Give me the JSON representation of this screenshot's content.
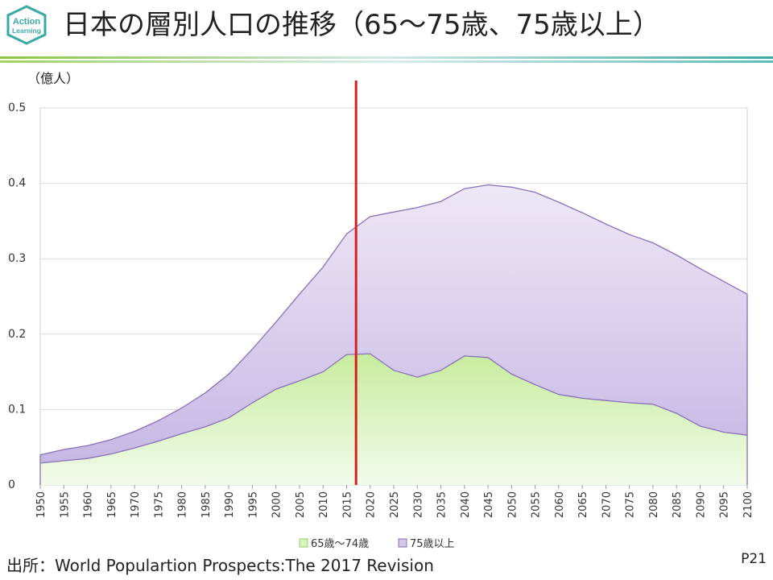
{
  "slide": {
    "title": "日本の層別人口の推移（65～75歳、75歳以上）",
    "logo_line1": "Action",
    "logo_line2": "Learning",
    "unit": "（億人）",
    "source": "出所：World  Populartion  Prospects:The  2017 Revision",
    "page": "P21"
  },
  "colors": {
    "brand_green": "#8cc63f",
    "brand_teal": "#3aa9a6",
    "series_65_74_top": "#eaf7dd",
    "series_65_74_bottom": "#c7ec9e",
    "series_65_74_line": "#9acd6a",
    "series_75_plus_top": "#ece6f6",
    "series_75_plus_bottom": "#cbbde6",
    "series_75_plus_line": "#8a6fb8",
    "marker_line": "#d42020"
  },
  "chart_data": {
    "type": "area",
    "stacked": true,
    "title": "日本の層別人口の推移（65～75歳、75歳以上）",
    "ylabel": "（億人）",
    "ylim": [
      0,
      0.5
    ],
    "yticks": [
      "0",
      "0.1",
      "0.2",
      "0.3",
      "0.4",
      "0.5"
    ],
    "grid": true,
    "legend_position": "bottom",
    "x": [
      "1950",
      "1955",
      "1960",
      "1965",
      "1970",
      "1975",
      "1980",
      "1985",
      "1990",
      "1995",
      "2000",
      "2005",
      "2010",
      "2015",
      "2020",
      "2025",
      "2030",
      "2035",
      "2040",
      "2045",
      "2050",
      "2055",
      "2060",
      "2065",
      "2070",
      "2075",
      "2080",
      "2085",
      "2090",
      "2095",
      "2100"
    ],
    "series": [
      {
        "name": "65歳～74歳",
        "values": [
          0.029,
          0.032,
          0.035,
          0.041,
          0.049,
          0.058,
          0.068,
          0.077,
          0.089,
          0.109,
          0.127,
          0.138,
          0.15,
          0.173,
          0.174,
          0.152,
          0.143,
          0.152,
          0.171,
          0.169,
          0.147,
          0.133,
          0.12,
          0.115,
          0.112,
          0.109,
          0.107,
          0.095,
          0.078,
          0.07,
          0.066
        ]
      },
      {
        "name": "75歳以上",
        "values": [
          0.011,
          0.015,
          0.017,
          0.019,
          0.022,
          0.027,
          0.034,
          0.045,
          0.058,
          0.071,
          0.089,
          0.115,
          0.139,
          0.16,
          0.182,
          0.21,
          0.225,
          0.224,
          0.222,
          0.229,
          0.248,
          0.255,
          0.255,
          0.246,
          0.234,
          0.223,
          0.214,
          0.21,
          0.209,
          0.2,
          0.187
        ]
      }
    ],
    "reference_line_x": "2017"
  }
}
